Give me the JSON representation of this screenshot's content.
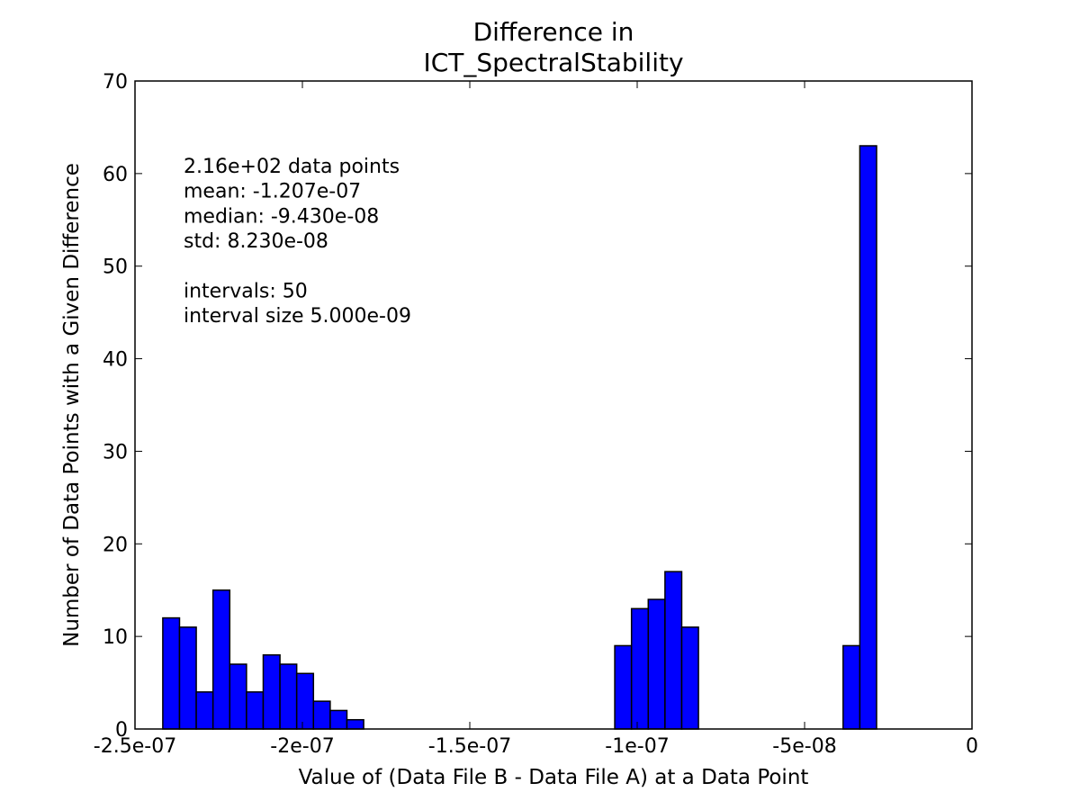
{
  "chart_data": {
    "type": "bar",
    "title_line1": "Difference in",
    "title_line2": "ICT_SpectralStability",
    "xlabel": "Value of (Data File B - Data File A) at a Data Point",
    "ylabel": "Number of Data Points with a Given Difference",
    "xlim": [
      -2.5e-07,
      0
    ],
    "ylim": [
      0,
      70
    ],
    "xticks": [
      {
        "value": -2.5e-07,
        "label": "-2.5e-07"
      },
      {
        "value": -2e-07,
        "label": "-2e-07"
      },
      {
        "value": -1.5e-07,
        "label": "-1.5e-07"
      },
      {
        "value": -1e-07,
        "label": "-1e-07"
      },
      {
        "value": -5e-08,
        "label": "-5e-08"
      },
      {
        "value": 0,
        "label": "0"
      }
    ],
    "yticks": [
      {
        "value": 0,
        "label": "0"
      },
      {
        "value": 10,
        "label": "10"
      },
      {
        "value": 20,
        "label": "20"
      },
      {
        "value": 30,
        "label": "30"
      },
      {
        "value": 40,
        "label": "40"
      },
      {
        "value": 50,
        "label": "50"
      },
      {
        "value": 60,
        "label": "60"
      },
      {
        "value": 70,
        "label": "70"
      }
    ],
    "bar_color": "#0000ff",
    "bins": [
      {
        "start": -2.417e-07,
        "end": -2.367e-07,
        "count": 12
      },
      {
        "start": -2.367e-07,
        "end": -2.317e-07,
        "count": 11
      },
      {
        "start": -2.317e-07,
        "end": -2.267e-07,
        "count": 4
      },
      {
        "start": -2.267e-07,
        "end": -2.217e-07,
        "count": 15
      },
      {
        "start": -2.217e-07,
        "end": -2.167e-07,
        "count": 7
      },
      {
        "start": -2.167e-07,
        "end": -2.117e-07,
        "count": 4
      },
      {
        "start": -2.117e-07,
        "end": -2.067e-07,
        "count": 8
      },
      {
        "start": -2.067e-07,
        "end": -2.017e-07,
        "count": 7
      },
      {
        "start": -2.017e-07,
        "end": -1.967e-07,
        "count": 6
      },
      {
        "start": -1.967e-07,
        "end": -1.917e-07,
        "count": 3
      },
      {
        "start": -1.917e-07,
        "end": -1.867e-07,
        "count": 2
      },
      {
        "start": -1.867e-07,
        "end": -1.817e-07,
        "count": 1
      },
      {
        "start": -1.067e-07,
        "end": -1.017e-07,
        "count": 9
      },
      {
        "start": -1.017e-07,
        "end": -9.67e-08,
        "count": 13
      },
      {
        "start": -9.67e-08,
        "end": -9.17e-08,
        "count": 14
      },
      {
        "start": -9.17e-08,
        "end": -8.67e-08,
        "count": 17
      },
      {
        "start": -8.67e-08,
        "end": -8.17e-08,
        "count": 11
      },
      {
        "start": -3.85e-08,
        "end": -3.35e-08,
        "count": 9
      },
      {
        "start": -3.35e-08,
        "end": -2.85e-08,
        "count": 63
      }
    ],
    "annotation_lines": [
      "2.16e+02 data points",
      "mean: -1.207e-07",
      "median: -9.430e-08",
      "std: 8.230e-08",
      "",
      "intervals: 50",
      "interval size 5.000e-09"
    ],
    "grid": false,
    "legend": false
  }
}
